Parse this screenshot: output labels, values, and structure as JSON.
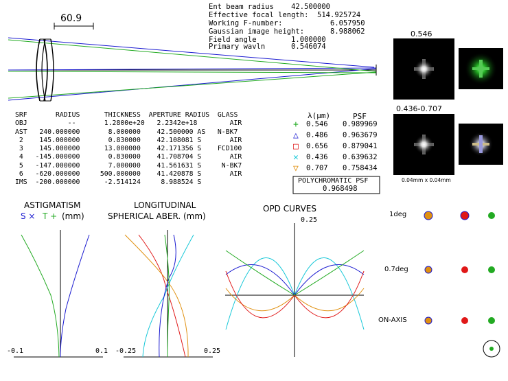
{
  "header": {
    "ent_beam_radius": "Ent beam radius    42.500000",
    "efl": "Effective focal length:  514.925724",
    "fnum": "Working F-number:           6.057950",
    "gauss": "Gaussian image height:      8.988062",
    "field": "Field angle        1.000000",
    "wavl": "Primary wavln      0.546074"
  },
  "scale_label": "60.9",
  "table": {
    "header": "SRF       RADIUS      THICKNESS  APERTURE RADIUS  GLASS",
    "rows": [
      "OBJ          --       1.2800e+20   2.2342e+18        AIR",
      "AST   240.000000       8.000000    42.500000 AS   N-BK7",
      " 2    145.000000       0.830000    42.108081 S       AIR",
      " 3    145.000000      13.000000    42.171356 S    FCD100",
      " 4   -145.000000       0.830000    41.708704 S       AIR",
      " 5   -147.000000       7.000000    41.561631 S     N-BK7",
      " 6   -620.000000     500.000000    41.420878 S       AIR",
      "IMS  -200.000000      -2.514124     8.988524 S"
    ]
  },
  "psf_table": {
    "col_wl": "λ(μm)",
    "col_psf": "PSF",
    "rows": [
      {
        "wl": "0.546",
        "psf": "0.989969",
        "symbol": "+",
        "color": "#22aa22"
      },
      {
        "wl": "0.486",
        "psf": "0.963679",
        "symbol": "△",
        "color": "#1a1ad0"
      },
      {
        "wl": "0.656",
        "psf": "0.879041",
        "symbol": "□",
        "color": "#e01818"
      },
      {
        "wl": "0.436",
        "psf": "0.639632",
        "symbol": "✕",
        "color": "#18c8d8"
      },
      {
        "wl": "0.707",
        "psf": "0.758434",
        "symbol": "▽",
        "color": "#e09010"
      }
    ],
    "poly_label": "POLYCHROMATIC PSF",
    "poly_value": "0.968498"
  },
  "psf_images": {
    "label_top": "0.546",
    "label_bottom": "0.436-0.707",
    "scale_label": "0.04mm x 0.04mm"
  },
  "plots": {
    "astig_title": "ASTIGMATISM",
    "astig_legend_s": "S ×",
    "astig_legend_t": "T +",
    "astig_legend_unit": "(mm)",
    "astig_xmin": "-0.1",
    "astig_xmax": "0.1",
    "long_title1": "LONGITUDINAL",
    "long_title2": "SPHERICAL ABER. (mm)",
    "long_xmin": "-0.25",
    "long_xmax": "0.25",
    "opd_title": "OPD CURVES",
    "opd_ymax": "0.25"
  },
  "spots": {
    "labels": [
      "1deg",
      "0.7deg",
      "ON-AXIS"
    ]
  },
  "colors": {
    "green": "#22aa22",
    "blue": "#1a1ad0",
    "red": "#e01818",
    "cyan": "#18c8d8",
    "orange": "#e09010"
  }
}
